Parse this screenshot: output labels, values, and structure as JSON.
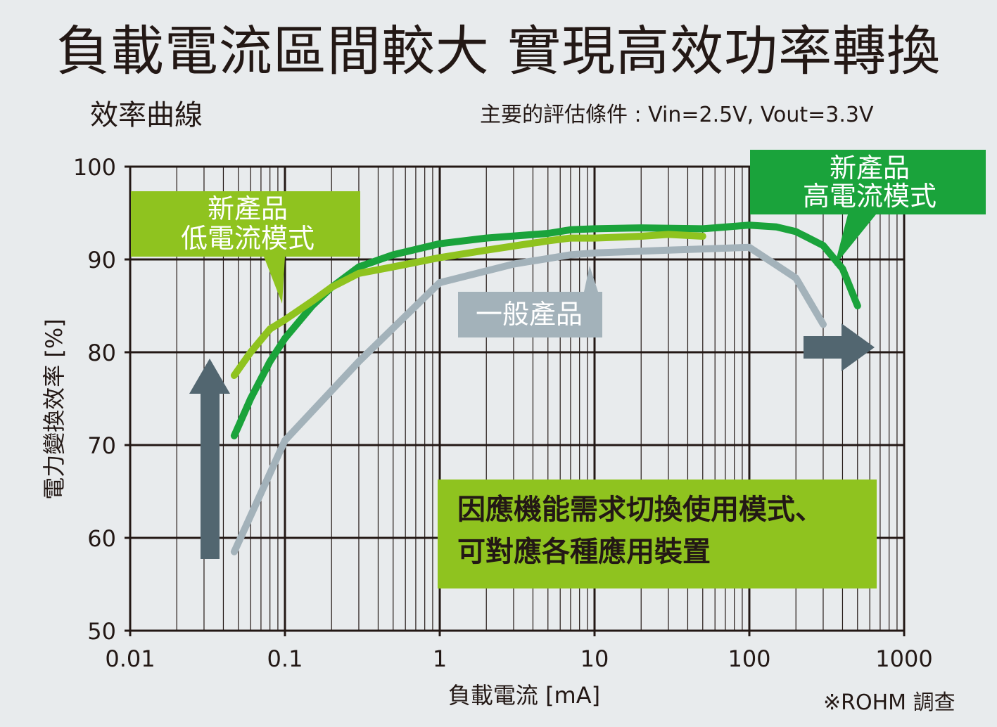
{
  "header": {
    "title": "負載電流區間較大 實現高效功率轉換",
    "subtitle": "效率曲線",
    "conditions": "主要的評估條件 : Vin=2.5V, Vout=3.3V"
  },
  "footer": {
    "source": "※ROHM 調查"
  },
  "colors": {
    "background": "#e8ebed",
    "grid": "#231815",
    "new_low": "#8fc31f",
    "new_high": "#1aa33b",
    "general": "#a3b2ba",
    "arrow": "#526670",
    "callout_text": "#231815"
  },
  "callouts": {
    "low_mode": [
      "新產品",
      "低電流模式"
    ],
    "high_mode": [
      "新產品",
      "高電流模式"
    ],
    "general": "一般產品",
    "message": [
      "因應機能需求切換使用模式、",
      "可對應各種應用裝置"
    ]
  },
  "chart_data": {
    "type": "line",
    "title": "效率曲線",
    "xlabel": "負載電流 [mA]",
    "ylabel": "電力變換效率 [%]",
    "x_scale": "log",
    "xlim": [
      0.01,
      1000
    ],
    "ylim": [
      50,
      100
    ],
    "x_ticks": [
      "0.01",
      "0.1",
      "1",
      "10",
      "100",
      "1000"
    ],
    "y_ticks": [
      "50",
      "60",
      "70",
      "80",
      "90",
      "100"
    ],
    "grid": true,
    "series": [
      {
        "name": "新產品 低電流模式",
        "color": "#8fc31f",
        "x": [
          0.047,
          0.06,
          0.08,
          0.1,
          0.15,
          0.2,
          0.3,
          0.5,
          1,
          2,
          5,
          7,
          10,
          20,
          30,
          50
        ],
        "y": [
          77.5,
          80,
          82.5,
          83.5,
          85.5,
          87,
          88.5,
          89.2,
          90.2,
          91,
          92,
          92.3,
          92.3,
          92.5,
          92.7,
          92.5
        ]
      },
      {
        "name": "新產品 高電流模式",
        "color": "#1aa33b",
        "x": [
          0.047,
          0.06,
          0.08,
          0.1,
          0.15,
          0.2,
          0.3,
          0.5,
          1,
          2,
          5,
          7,
          10,
          20,
          50,
          100,
          150,
          200,
          300,
          400,
          500
        ],
        "y": [
          71,
          75,
          79,
          81.5,
          85,
          87,
          89.2,
          90.5,
          91.7,
          92.3,
          92.8,
          93.2,
          93.3,
          93.4,
          93.3,
          93.7,
          93.5,
          93,
          91.5,
          89,
          85
        ]
      },
      {
        "name": "一般產品",
        "color": "#a3b2ba",
        "x": [
          0.047,
          0.1,
          0.3,
          1,
          3,
          7,
          10,
          30,
          100,
          200,
          300
        ],
        "y": [
          58.5,
          70.5,
          79,
          87.5,
          89.5,
          90.5,
          90.7,
          91,
          91.3,
          88,
          83
        ]
      }
    ]
  }
}
